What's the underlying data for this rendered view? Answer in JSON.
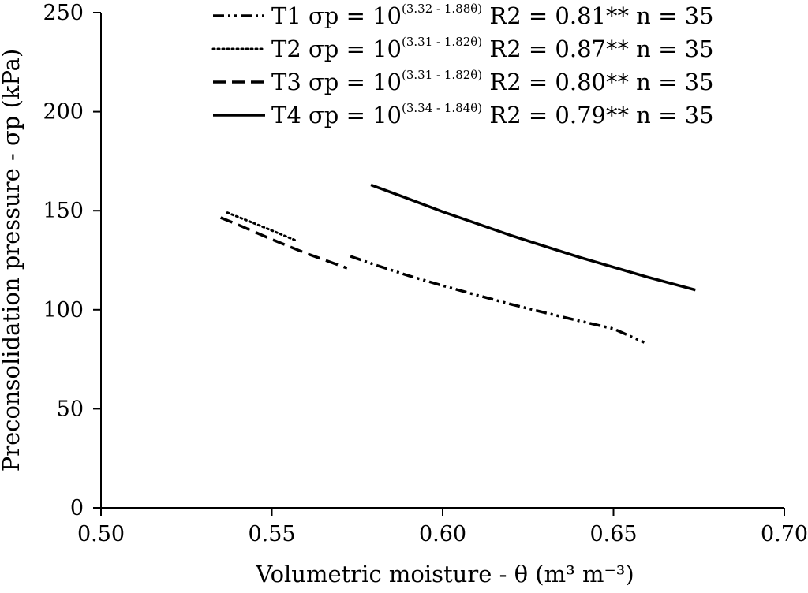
{
  "chart_data": {
    "type": "line",
    "xlabel": "Volumetric moisture - θ (m³ m⁻³)",
    "ylabel": "Preconsolidation pressure - σp (kPa)",
    "xlim": [
      0.5,
      0.7
    ],
    "ylim": [
      0,
      250
    ],
    "xticks": [
      "0.50",
      "0.55",
      "0.60",
      "0.65",
      "0.70"
    ],
    "yticks": [
      "0",
      "50",
      "100",
      "150",
      "200",
      "250"
    ],
    "grid": false,
    "legend_position": "top-right",
    "series": [
      {
        "name": "T1",
        "legend": {
          "prefix": "T1 σp = 10",
          "exponent": "(3.32 - 1.88θ)",
          "suffix": " R2 = 0.81** n = 35"
        },
        "line_style": "dash-dot-dot",
        "x": [
          0.573,
          0.58,
          0.59,
          0.6,
          0.61,
          0.62,
          0.63,
          0.64,
          0.65,
          0.659
        ],
        "y": [
          127,
          122.8,
          117.2,
          112.2,
          107.4,
          102.8,
          98.5,
          94.4,
          90.4,
          83.5
        ]
      },
      {
        "name": "T2",
        "legend": {
          "prefix": "T2 σp = 10",
          "exponent": "(3.31 - 1.82θ)",
          "suffix": " R2 = 0.87** n = 35"
        },
        "line_style": "dotted",
        "x": [
          0.537,
          0.545,
          0.55,
          0.557
        ],
        "y": [
          149,
          143.5,
          140,
          135
        ]
      },
      {
        "name": "T3",
        "legend": {
          "prefix": "T3 σp = 10",
          "exponent": "(3.31 - 1.82θ)",
          "suffix": " R2 = 0.80** n = 35"
        },
        "line_style": "dashed",
        "x": [
          0.535,
          0.54,
          0.55,
          0.56,
          0.572
        ],
        "y": [
          146.5,
          143,
          135.5,
          128.5,
          121
        ]
      },
      {
        "name": "T4",
        "legend": {
          "prefix": "T4 σp = 10",
          "exponent": "(3.34 - 1.84θ)",
          "suffix": " R2 = 0.79** n = 35"
        },
        "line_style": "solid",
        "x": [
          0.579,
          0.59,
          0.6,
          0.61,
          0.62,
          0.63,
          0.64,
          0.65,
          0.66,
          0.674
        ],
        "y": [
          163,
          156,
          149.5,
          143.5,
          137.5,
          132,
          126.5,
          121.5,
          116.5,
          110
        ]
      }
    ]
  }
}
